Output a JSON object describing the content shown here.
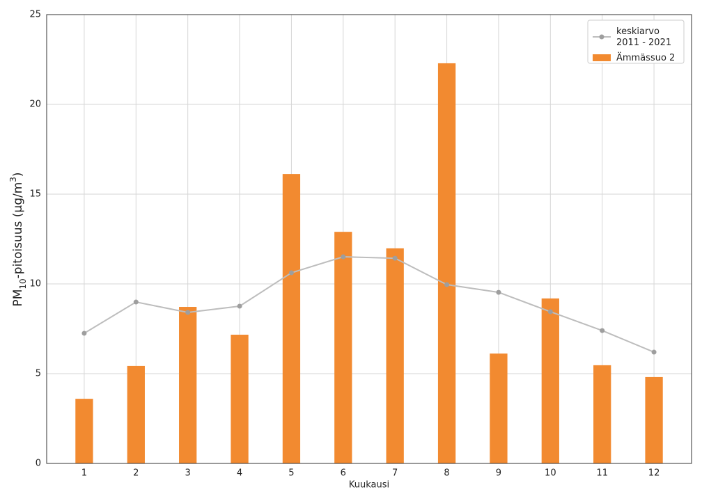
{
  "chart_data": {
    "type": "bar",
    "x_label": "Kuukausi",
    "y_label": [
      "PM",
      "10",
      "-pitoisuus (µg/m",
      "3",
      ")"
    ],
    "x": [
      1,
      2,
      3,
      4,
      5,
      6,
      7,
      8,
      9,
      10,
      11,
      12
    ],
    "series": [
      {
        "name": "keskiarvo\n2011 - 2021",
        "type": "line",
        "color": "#bdbdbd",
        "marker_color": "#9e9e9e",
        "values": [
          7.25,
          8.99,
          8.41,
          8.76,
          10.62,
          11.51,
          11.43,
          9.96,
          9.53,
          8.45,
          7.4,
          6.2
        ]
      },
      {
        "name": "Ämmässuo 2",
        "type": "bar",
        "color": "#f28a30",
        "values": [
          3.6,
          5.43,
          8.72,
          7.17,
          16.12,
          12.9,
          11.98,
          22.29,
          6.12,
          9.19,
          5.47,
          4.81
        ]
      }
    ],
    "xlim": [
      0.275,
      12.725
    ],
    "xticks": [
      1,
      2,
      3,
      4,
      5,
      6,
      7,
      8,
      9,
      10,
      11,
      12
    ],
    "ylim": [
      0,
      25
    ],
    "yticks": [
      0,
      5,
      10,
      15,
      20,
      25
    ],
    "grid": true,
    "legend": "upper-right"
  }
}
